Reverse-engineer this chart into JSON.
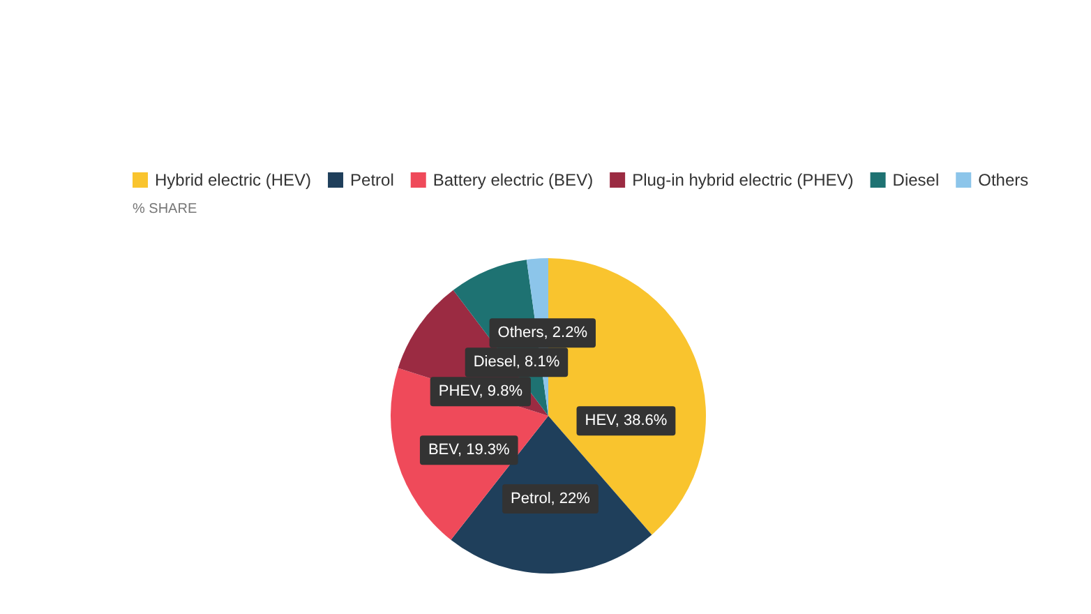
{
  "chart_data": {
    "type": "pie",
    "subtitle": "% SHARE",
    "categories": [
      "Hybrid electric (HEV)",
      "Petrol",
      "Battery electric (BEV)",
      "Plug-in hybrid electric (PHEV)",
      "Diesel",
      "Others"
    ],
    "values": [
      38.6,
      22,
      19.3,
      9.8,
      8.1,
      2.2
    ],
    "colors": [
      "#f9c42e",
      "#1f3f5b",
      "#ef4a5a",
      "#9b2b42",
      "#1e7272",
      "#8cc5ea"
    ],
    "value_labels": [
      "HEV, 38.6%",
      "Petrol, 22%",
      "BEV, 19.3%",
      "PHEV, 9.8%",
      "Diesel, 8.1%",
      "Others, 2.2%"
    ],
    "legend": "top"
  }
}
